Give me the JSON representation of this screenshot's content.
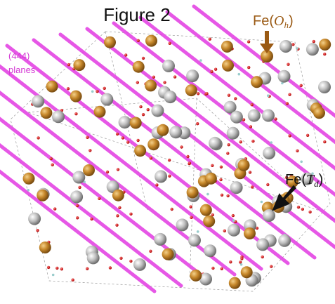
{
  "title": "Figure 2",
  "labels": {
    "oh": {
      "prefix": "Fe(",
      "symbol": "O",
      "subscript": "h",
      "suffix": ")"
    },
    "planes": {
      "line1": "(444)",
      "line2": "planes"
    },
    "td": {
      "prefix": "Fe(",
      "symbol": "T",
      "subscript": "d",
      "suffix": ")"
    }
  }
}
